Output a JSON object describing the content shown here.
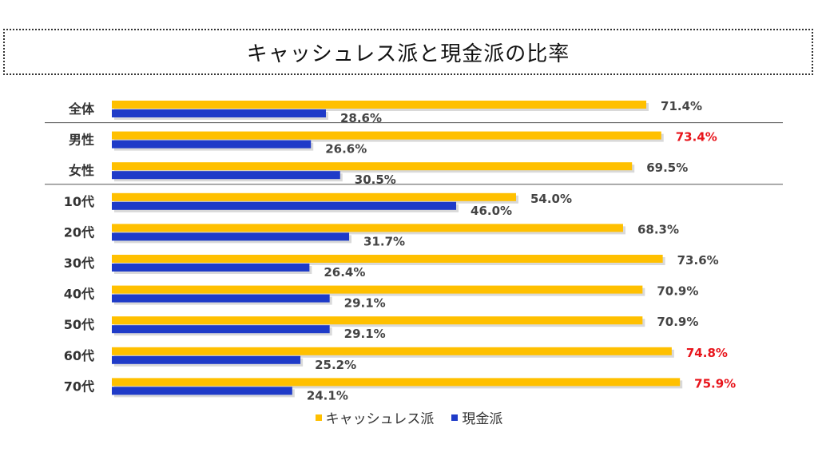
{
  "title": "キャッシュレス派と現金派の比率",
  "colors": {
    "cashless": "#FFC000",
    "cash": "#1F3BC8",
    "highlight": "#E8141B"
  },
  "chart_data": {
    "type": "bar",
    "orientation": "horizontal",
    "title": "キャッシュレス派と現金派の比率",
    "categories": [
      "全体",
      "男性",
      "女性",
      "10代",
      "20代",
      "30代",
      "40代",
      "50代",
      "60代",
      "70代"
    ],
    "series": [
      {
        "name": "キャッシュレス派",
        "values": [
          71.4,
          73.4,
          69.5,
          54.0,
          68.3,
          73.6,
          70.9,
          70.9,
          74.8,
          75.9
        ],
        "labels": [
          "71.4%",
          "73.4%",
          "69.5%",
          "54.0%",
          "68.3%",
          "73.6%",
          "70.9%",
          "70.9%",
          "74.8%",
          "75.9%"
        ]
      },
      {
        "name": "現金派",
        "values": [
          28.6,
          26.6,
          30.5,
          46.0,
          31.7,
          26.4,
          29.1,
          29.1,
          25.2,
          24.1
        ],
        "labels": [
          "28.6%",
          "26.6%",
          "30.5%",
          "46.0%",
          "31.7%",
          "26.4%",
          "29.1%",
          "29.1%",
          "25.2%",
          "24.1%"
        ]
      }
    ],
    "highlighted_cashless": [
      "男性",
      "60代",
      "70代"
    ],
    "xlim": [
      0,
      100
    ],
    "group_separators_after": [
      "全体",
      "女性"
    ],
    "legend": "bottom-center",
    "grid": false
  }
}
